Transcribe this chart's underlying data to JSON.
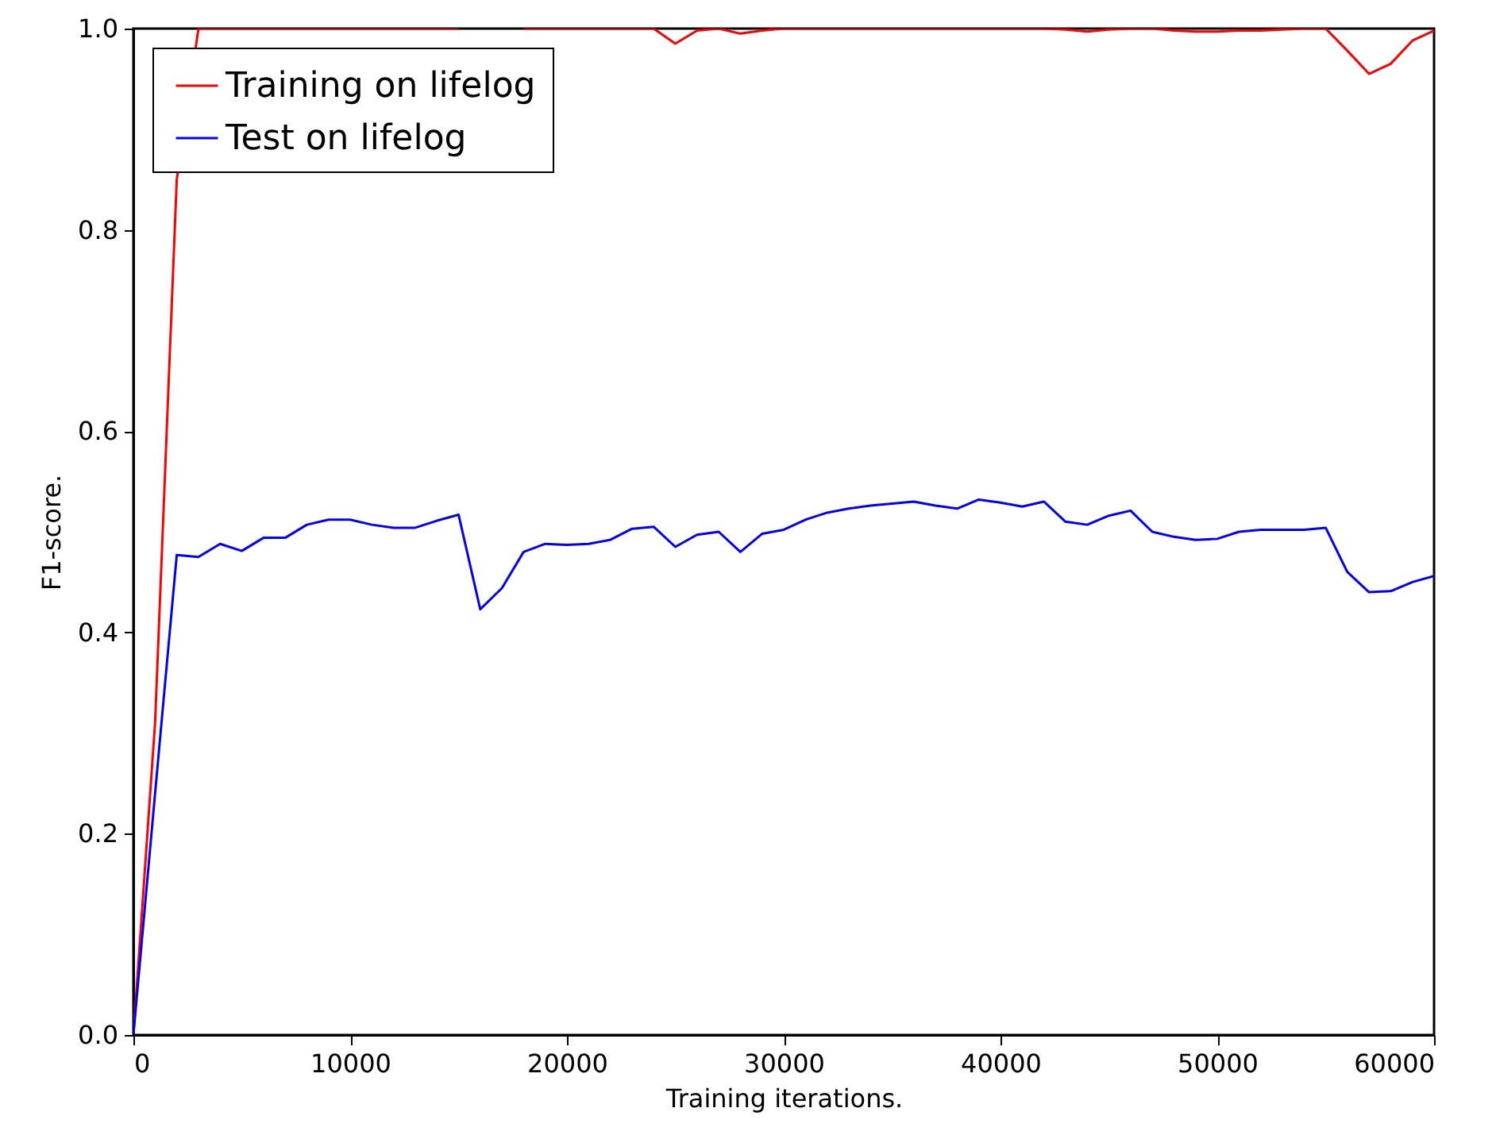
{
  "chart_data": {
    "type": "line",
    "xlabel": "Training iterations.",
    "ylabel": "F1-score.",
    "x": [
      0,
      1000,
      2000,
      3000,
      4000,
      5000,
      6000,
      7000,
      8000,
      9000,
      10000,
      11000,
      12000,
      13000,
      14000,
      15000,
      16000,
      17000,
      18000,
      19000,
      20000,
      21000,
      22000,
      23000,
      24000,
      25000,
      26000,
      27000,
      28000,
      29000,
      30000,
      31000,
      32000,
      33000,
      34000,
      35000,
      36000,
      37000,
      38000,
      39000,
      40000,
      41000,
      42000,
      43000,
      44000,
      45000,
      46000,
      47000,
      48000,
      49000,
      50000,
      51000,
      52000,
      53000,
      54000,
      55000,
      56000,
      57000,
      58000,
      59000,
      60000
    ],
    "series": [
      {
        "name": "Training on lifelog",
        "color": "#ff0000",
        "values": [
          0,
          0.31,
          0.85,
          1.0,
          1.0,
          1.0,
          1.0,
          1.0,
          1.0,
          1.0,
          1.0,
          1.0,
          1.0,
          1.0,
          1.0,
          1.0,
          null,
          null,
          1.0,
          1.0,
          1.0,
          1.0,
          1.0,
          1.0,
          1.0,
          0.985,
          0.998,
          1.0,
          0.995,
          0.998,
          1.0,
          1.0,
          1.0,
          1.0,
          1.0,
          1.0,
          1.0,
          1.0,
          1.0,
          1.0,
          1.0,
          1.0,
          1.0,
          0.999,
          0.997,
          0.999,
          1.0,
          1.0,
          0.998,
          0.997,
          0.997,
          0.998,
          0.998,
          0.999,
          1.0,
          1.0,
          0.978,
          0.955,
          0.965,
          0.988,
          0.998
        ]
      },
      {
        "name": "Test on lifelog",
        "color": "#0000ff",
        "values": [
          0,
          0.24,
          0.477,
          0.475,
          0.488,
          0.481,
          0.494,
          0.494,
          0.507,
          0.512,
          0.512,
          0.507,
          0.504,
          0.504,
          0.511,
          0.517,
          0.423,
          0.444,
          0.48,
          0.488,
          0.487,
          0.488,
          0.492,
          0.503,
          0.505,
          0.485,
          0.497,
          0.5,
          0.48,
          0.498,
          0.502,
          0.512,
          0.519,
          0.523,
          0.526,
          0.528,
          0.53,
          0.526,
          0.523,
          0.532,
          0.529,
          0.525,
          0.53,
          0.51,
          0.507,
          0.516,
          0.521,
          0.5,
          0.495,
          0.492,
          0.493,
          0.5,
          0.502,
          0.502,
          0.502,
          0.504,
          0.46,
          0.44,
          0.441,
          0.45,
          0.456
        ]
      }
    ],
    "xlim": [
      0,
      60000
    ],
    "xticks": [
      0,
      10000,
      20000,
      30000,
      40000,
      50000,
      60000
    ],
    "ylim": [
      0,
      1.0
    ],
    "yticks": [
      {
        "value": 0,
        "label": "0.0"
      },
      0.2,
      0.4,
      0.6,
      0.8,
      {
        "value": 1,
        "label": "1.0"
      }
    ],
    "legend": "top left",
    "grid": false,
    "marker": "none",
    "line_style": "solid"
  }
}
